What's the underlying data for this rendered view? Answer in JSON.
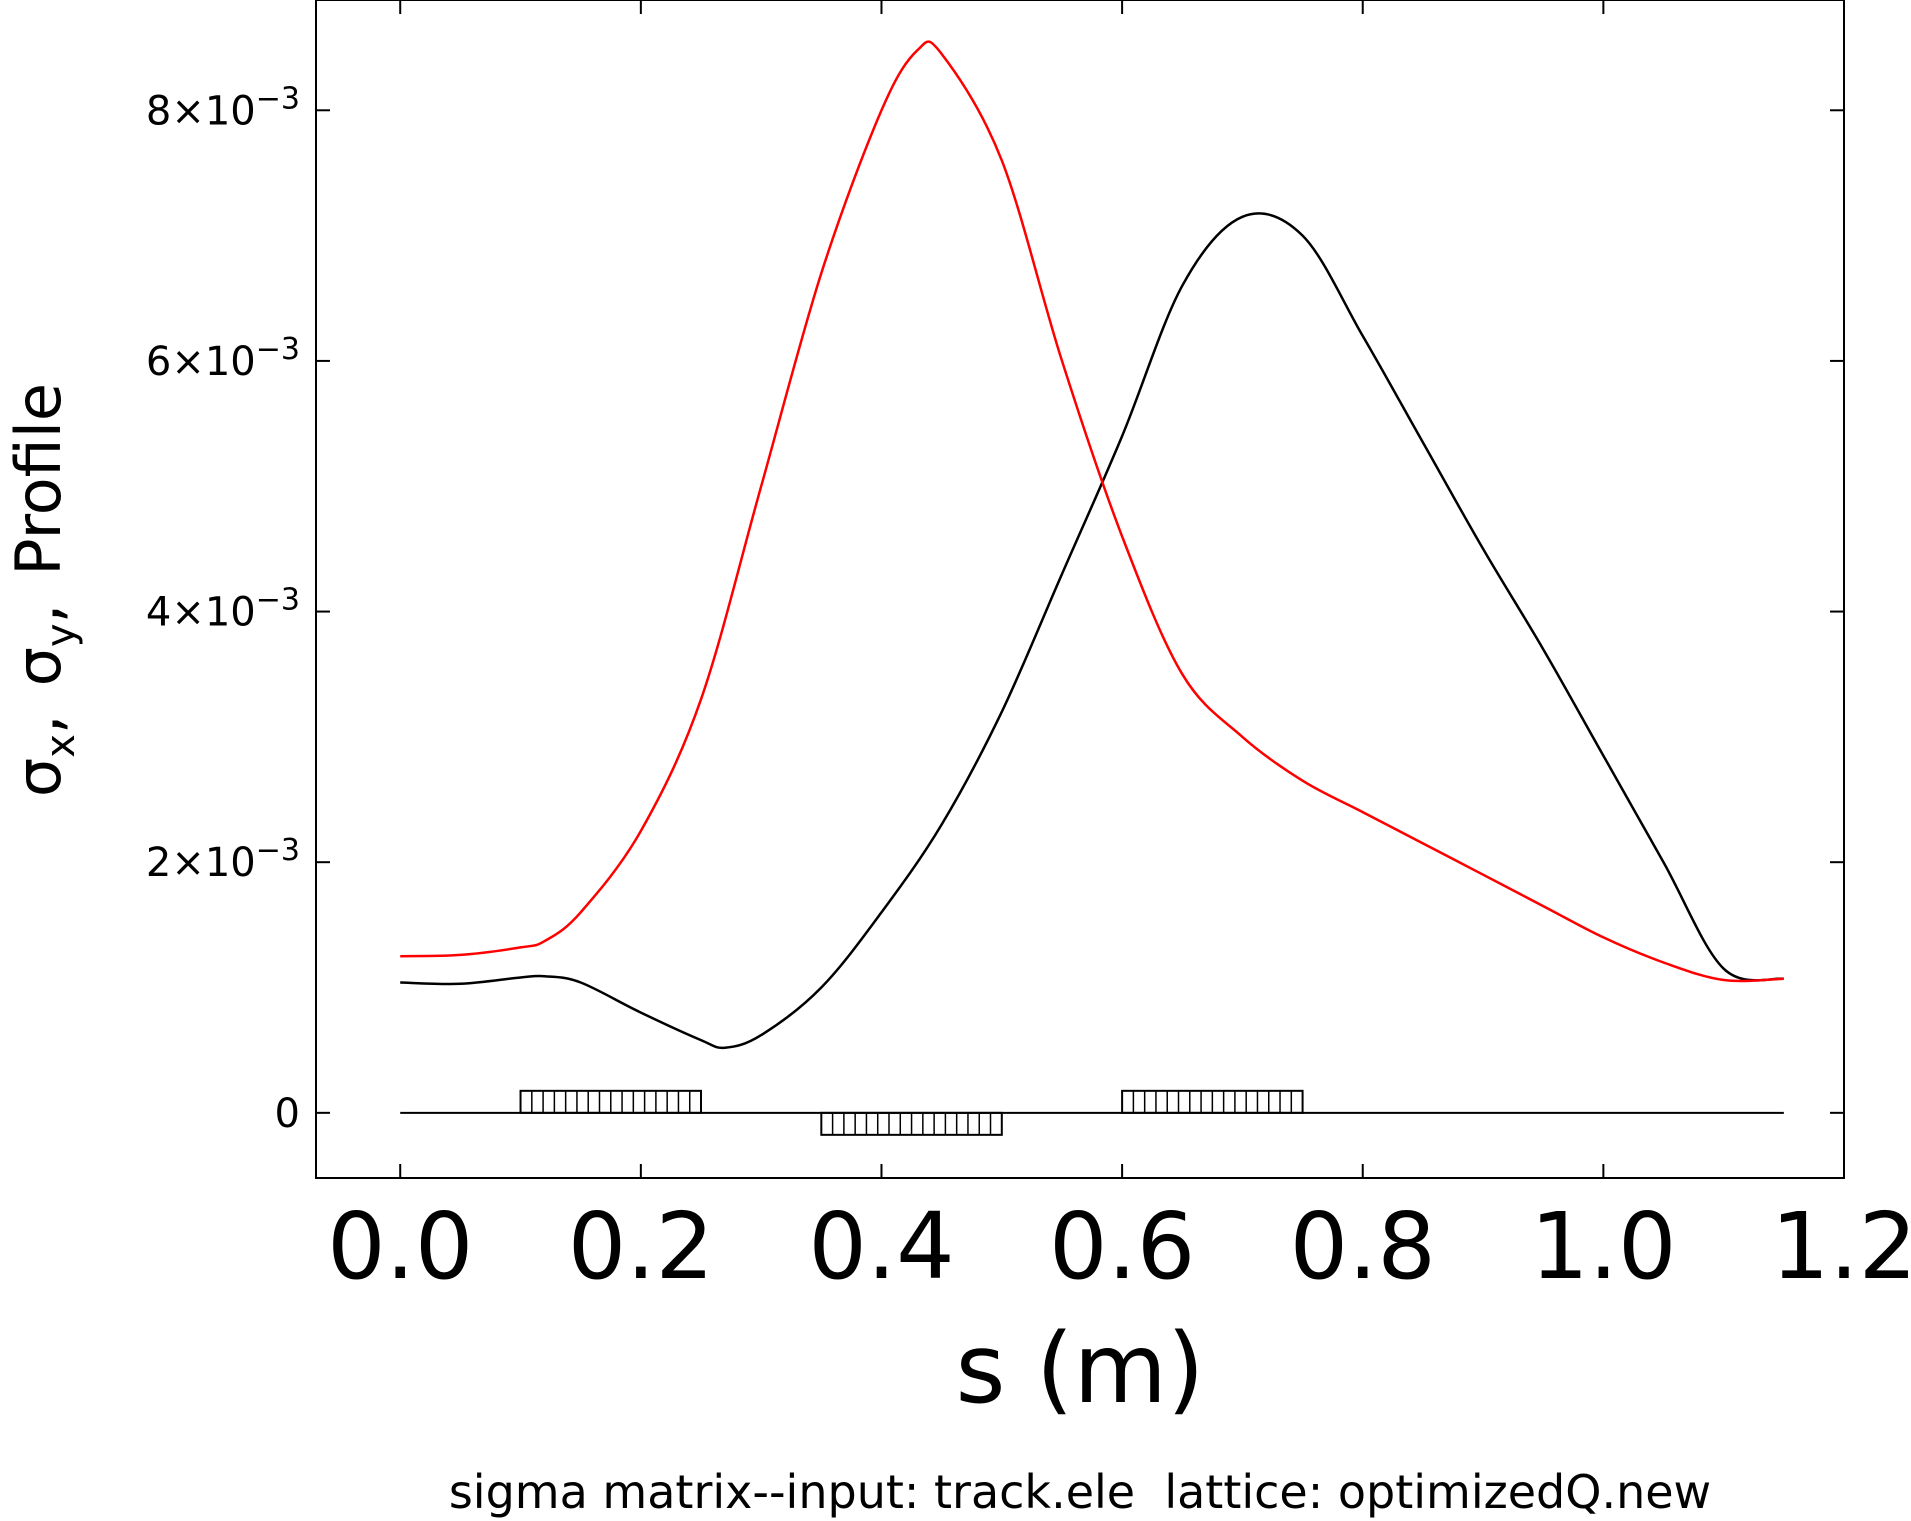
{
  "chart_data": {
    "type": "line",
    "xlabel": "s (m)",
    "ylabel": {
      "sigma": "σ",
      "sub_x": "x",
      "sub_y": "y",
      "comma": ",",
      "word": "Profile"
    },
    "caption": "sigma matrix--input: track.ele  lattice: optimizedQ.new",
    "xlim": [
      -0.07,
      1.2
    ],
    "ylim": [
      -0.00052,
      0.00888
    ],
    "x_ticks": [
      0.0,
      0.2,
      0.4,
      0.6,
      0.8,
      1.0,
      1.2
    ],
    "x_tick_labels": [
      "0.0",
      "0.2",
      "0.4",
      "0.6",
      "0.8",
      "1.0",
      "1.2"
    ],
    "y_ticks": [
      0,
      0.002,
      0.004,
      0.006,
      0.008
    ],
    "y_tick_labels": [
      {
        "mant": "0",
        "exp": ""
      },
      {
        "mant": "2×10",
        "exp": "−3"
      },
      {
        "mant": "4×10",
        "exp": "−3"
      },
      {
        "mant": "6×10",
        "exp": "−3"
      },
      {
        "mant": "8×10",
        "exp": "−3"
      }
    ],
    "series": [
      {
        "color": "#000000",
        "x": [
          0.0,
          0.05,
          0.1,
          0.12,
          0.15,
          0.2,
          0.25,
          0.27,
          0.3,
          0.35,
          0.4,
          0.45,
          0.5,
          0.55,
          0.6,
          0.65,
          0.7,
          0.75,
          0.8,
          0.85,
          0.9,
          0.95,
          1.0,
          1.05,
          1.1,
          1.15
        ],
        "y": [
          0.00104,
          0.00103,
          0.00108,
          0.00109,
          0.00104,
          0.0008,
          0.00058,
          0.00052,
          0.00062,
          0.001,
          0.0016,
          0.0023,
          0.0032,
          0.0043,
          0.0054,
          0.0066,
          0.00715,
          0.007,
          0.0062,
          0.00535,
          0.0045,
          0.0037,
          0.00285,
          0.002,
          0.00115,
          0.00107
        ]
      },
      {
        "color": "#ff0000",
        "x": [
          0.0,
          0.05,
          0.1,
          0.12,
          0.15,
          0.2,
          0.25,
          0.3,
          0.35,
          0.4,
          0.43,
          0.45,
          0.5,
          0.55,
          0.6,
          0.65,
          0.7,
          0.75,
          0.8,
          0.85,
          0.9,
          0.95,
          1.0,
          1.05,
          1.1,
          1.15
        ],
        "y": [
          0.00125,
          0.00126,
          0.00132,
          0.00137,
          0.0016,
          0.00225,
          0.0033,
          0.005,
          0.0067,
          0.008,
          0.00848,
          0.00845,
          0.0076,
          0.006,
          0.0046,
          0.0035,
          0.003,
          0.00265,
          0.0024,
          0.00215,
          0.0019,
          0.00165,
          0.0014,
          0.0012,
          0.00106,
          0.00107
        ]
      }
    ],
    "elements": [
      {
        "s_start": 0.1,
        "s_end": 0.25,
        "side": "above"
      },
      {
        "s_start": 0.35,
        "s_end": 0.5,
        "side": "below"
      },
      {
        "s_start": 0.6,
        "s_end": 0.75,
        "side": "above"
      }
    ],
    "grid": false
  }
}
